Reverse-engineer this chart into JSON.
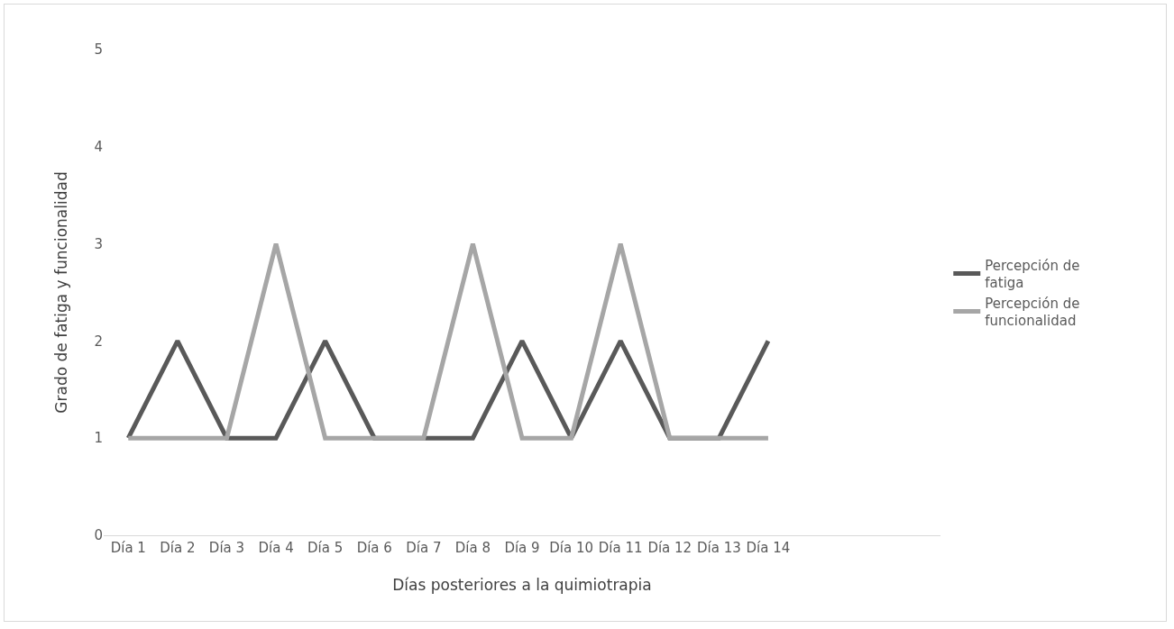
{
  "chart_data": {
    "type": "line",
    "xlabel": "Días posteriores a la quimiotrapia",
    "ylabel": "Grado de fatiga y funcionalidad",
    "categories": [
      "Día 1",
      "Día 2",
      "Día 3",
      "Día 4",
      "Día 5",
      "Día 6",
      "Día 7",
      "Día 8",
      "Día 9",
      "Día 10",
      "Día 11",
      "Día 12",
      "Día 13",
      "Día 14",
      null,
      null,
      null
    ],
    "series": [
      {
        "name": "Percepción de fatiga",
        "color": "#595959",
        "values": [
          1,
          2,
          1,
          1,
          2,
          1,
          1,
          1,
          2,
          1,
          2,
          1,
          1,
          2,
          null,
          null,
          null
        ]
      },
      {
        "name": "Percepción de funcionalidad",
        "color": "#a6a6a6",
        "values": [
          1,
          1,
          1,
          3,
          1,
          1,
          1,
          3,
          1,
          1,
          3,
          1,
          1,
          1,
          null,
          null,
          null
        ]
      }
    ],
    "ylim": [
      0,
      5
    ],
    "yticks": [
      0,
      1,
      2,
      3,
      4,
      5
    ],
    "grid": false,
    "legend": "right",
    "marker": "none",
    "line_style": "solid"
  }
}
